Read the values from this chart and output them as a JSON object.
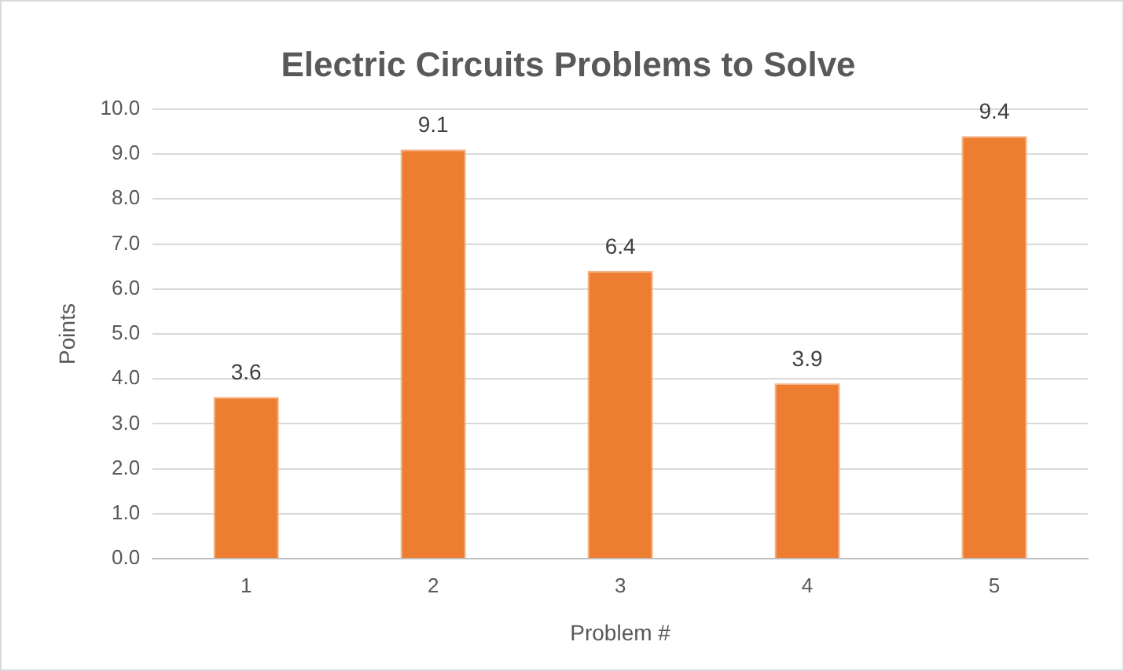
{
  "chart_data": {
    "type": "bar",
    "title": "Electric Circuits Problems to Solve",
    "xlabel": "Problem #",
    "ylabel": "Points",
    "categories": [
      "1",
      "2",
      "3",
      "4",
      "5"
    ],
    "values": [
      3.6,
      9.1,
      6.4,
      3.9,
      9.4
    ],
    "color": "#ed7d31",
    "data_labels": true,
    "grid": "y",
    "legend": false,
    "ylim": [
      0,
      10
    ],
    "yticks": [
      {
        "value": 0,
        "label": "0.0"
      },
      {
        "value": 1,
        "label": "1.0"
      },
      {
        "value": 2,
        "label": "2.0"
      },
      {
        "value": 3,
        "label": "3.0"
      },
      {
        "value": 4,
        "label": "4.0"
      },
      {
        "value": 5,
        "label": "5.0"
      },
      {
        "value": 6,
        "label": "6.0"
      },
      {
        "value": 7,
        "label": "7.0"
      },
      {
        "value": 8,
        "label": "8.0"
      },
      {
        "value": 9,
        "label": "9.0"
      },
      {
        "value": 10,
        "label": "10.0"
      }
    ]
  }
}
